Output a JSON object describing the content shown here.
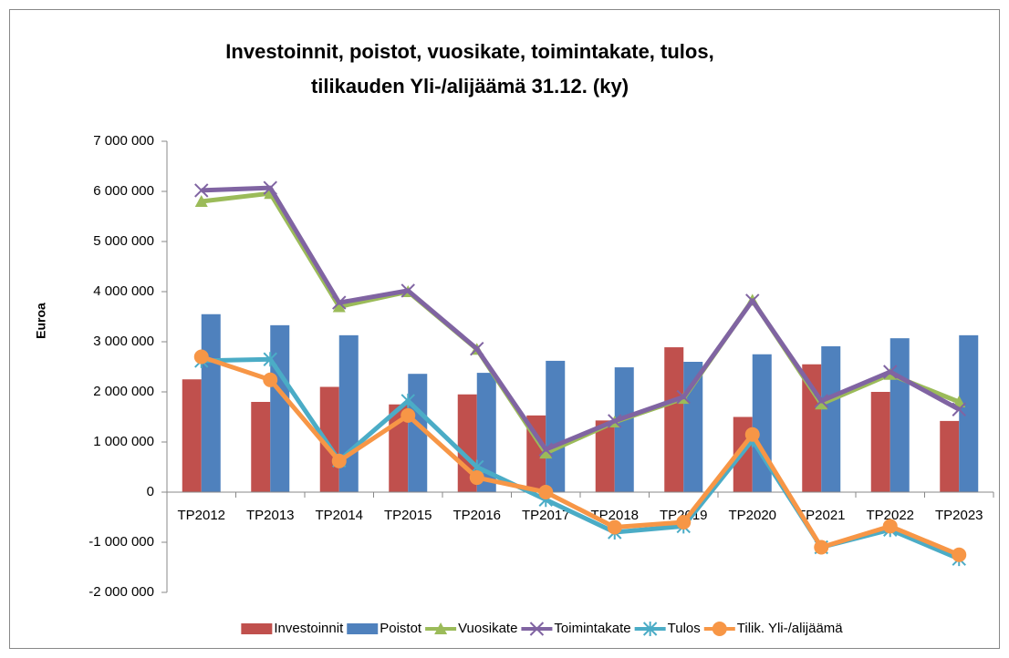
{
  "chart_data": {
    "type": "bar",
    "title": [
      "Investoinnit, poistot, vuosikate, toimintakate, tulos,",
      "tilikauden Yli-/alijäämä 31.12. (ky)"
    ],
    "y_label": "Euroa",
    "categories": [
      "TP2012",
      "TP2013",
      "TP2014",
      "TP2015",
      "TP2016",
      "TP2017",
      "TP2018",
      "TP2019",
      "TP2020",
      "TP2021",
      "TP2022",
      "TP2023"
    ],
    "series": [
      {
        "name": "Investoinnit",
        "type": "bar",
        "color": "#c0504d",
        "values": [
          2250000,
          1800000,
          2100000,
          1750000,
          1950000,
          1530000,
          1430000,
          2890000,
          1500000,
          2550000,
          2000000,
          1420000
        ]
      },
      {
        "name": "Poistot",
        "type": "bar",
        "color": "#4f81bd",
        "values": [
          3550000,
          3330000,
          3130000,
          2360000,
          2380000,
          2620000,
          2490000,
          2600000,
          2750000,
          2910000,
          3070000,
          3130000
        ]
      },
      {
        "name": "Vuosikate",
        "type": "line",
        "marker": "triangle",
        "color": "#9bbb59",
        "values": [
          5800000,
          5960000,
          3700000,
          4000000,
          2850000,
          780000,
          1400000,
          1870000,
          3830000,
          1760000,
          2350000,
          1800000
        ]
      },
      {
        "name": "Toimintakate",
        "type": "line",
        "marker": "x",
        "color": "#8064a2",
        "values": [
          6020000,
          6070000,
          3780000,
          4020000,
          2860000,
          850000,
          1420000,
          1900000,
          3820000,
          1820000,
          2400000,
          1650000
        ]
      },
      {
        "name": "Tulos",
        "type": "line",
        "marker": "star",
        "color": "#4bacc6",
        "values": [
          2620000,
          2650000,
          630000,
          1820000,
          500000,
          -150000,
          -800000,
          -680000,
          1040000,
          -1100000,
          -750000,
          -1330000
        ]
      },
      {
        "name": "Tilik. Yli-/alijäämä",
        "type": "line",
        "marker": "circle",
        "color": "#f79646",
        "values": [
          2700000,
          2240000,
          620000,
          1530000,
          290000,
          0,
          -700000,
          -600000,
          1150000,
          -1100000,
          -680000,
          -1250000
        ]
      }
    ],
    "ylim": [
      -2000000,
      7000000
    ],
    "yticks": [
      {
        "value": -2000000,
        "label": "-2 000 000"
      },
      {
        "value": -1000000,
        "label": "-1 000 000"
      },
      0,
      {
        "value": 1000000,
        "label": "1 000 000"
      },
      {
        "value": 2000000,
        "label": "2 000 000"
      },
      {
        "value": 3000000,
        "label": "3 000 000"
      },
      {
        "value": 4000000,
        "label": "4 000 000"
      },
      {
        "value": 5000000,
        "label": "5 000 000"
      },
      {
        "value": 6000000,
        "label": "6 000 000"
      },
      {
        "value": 7000000,
        "label": "7 000 000"
      }
    ],
    "grid": false,
    "legend": "bottom"
  }
}
